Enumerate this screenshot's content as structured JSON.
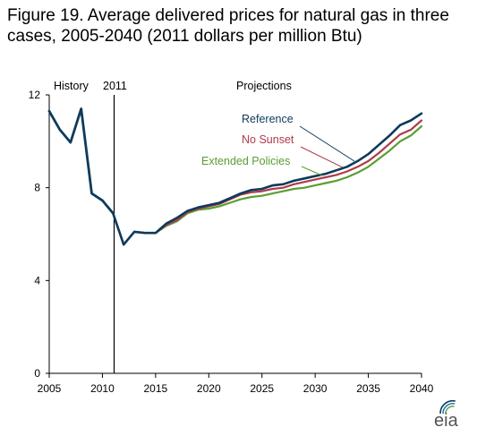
{
  "chart_data": {
    "type": "line",
    "title": "Figure 19. Average delivered prices for natural gas in three cases, 2005-2040 (2011 dollars per million Btu)",
    "xlim": [
      2005,
      2040
    ],
    "ylim": [
      0,
      12
    ],
    "x_ticks": [
      "2005",
      "2010",
      "2015",
      "2020",
      "2025",
      "2030",
      "2035",
      "2040"
    ],
    "y_ticks": [
      "0",
      "4",
      "8",
      "12"
    ],
    "annotations": {
      "history": "History",
      "year_2011": "2011",
      "projections": "Projections"
    },
    "logo": "eia",
    "colors": {
      "history": "#0d3a5c",
      "reference": "#0d3a5c",
      "no_sunset": "#b03a4a",
      "extended": "#5a9e34",
      "divider": "#000000"
    },
    "history": {
      "x": [
        2005,
        2006,
        2007,
        2008,
        2009,
        2010,
        2011
      ],
      "y": [
        11.3,
        10.5,
        9.95,
        11.4,
        7.75,
        7.45,
        6.9
      ]
    },
    "series": [
      {
        "name": "Reference",
        "x": [
          2011,
          2012,
          2013,
          2014,
          2015,
          2016,
          2017,
          2018,
          2019,
          2020,
          2021,
          2022,
          2023,
          2024,
          2025,
          2026,
          2027,
          2028,
          2029,
          2030,
          2031,
          2032,
          2033,
          2034,
          2035,
          2036,
          2037,
          2038,
          2039,
          2040
        ],
        "y": [
          6.9,
          5.55,
          6.1,
          6.05,
          6.05,
          6.45,
          6.7,
          7.0,
          7.15,
          7.25,
          7.35,
          7.55,
          7.75,
          7.9,
          7.95,
          8.1,
          8.15,
          8.3,
          8.4,
          8.5,
          8.6,
          8.75,
          8.9,
          9.15,
          9.45,
          9.85,
          10.25,
          10.7,
          10.9,
          11.2
        ]
      },
      {
        "name": "No Sunset",
        "x": [
          2011,
          2012,
          2013,
          2014,
          2015,
          2016,
          2017,
          2018,
          2019,
          2020,
          2021,
          2022,
          2023,
          2024,
          2025,
          2026,
          2027,
          2028,
          2029,
          2030,
          2031,
          2032,
          2033,
          2034,
          2035,
          2036,
          2037,
          2038,
          2039,
          2040
        ],
        "y": [
          6.9,
          5.55,
          6.1,
          6.05,
          6.05,
          6.4,
          6.6,
          6.95,
          7.1,
          7.2,
          7.3,
          7.5,
          7.7,
          7.8,
          7.85,
          7.95,
          8.0,
          8.15,
          8.25,
          8.35,
          8.45,
          8.55,
          8.7,
          8.9,
          9.15,
          9.5,
          9.9,
          10.3,
          10.5,
          10.9
        ]
      },
      {
        "name": "Extended Policies",
        "x": [
          2011,
          2012,
          2013,
          2014,
          2015,
          2016,
          2017,
          2018,
          2019,
          2020,
          2021,
          2022,
          2023,
          2024,
          2025,
          2026,
          2027,
          2028,
          2029,
          2030,
          2031,
          2032,
          2033,
          2034,
          2035,
          2036,
          2037,
          2038,
          2039,
          2040
        ],
        "y": [
          6.9,
          5.55,
          6.1,
          6.05,
          6.05,
          6.35,
          6.55,
          6.9,
          7.05,
          7.1,
          7.2,
          7.35,
          7.5,
          7.6,
          7.65,
          7.75,
          7.85,
          7.95,
          8.0,
          8.1,
          8.2,
          8.3,
          8.45,
          8.65,
          8.9,
          9.25,
          9.6,
          10.0,
          10.25,
          10.65
        ]
      }
    ]
  }
}
